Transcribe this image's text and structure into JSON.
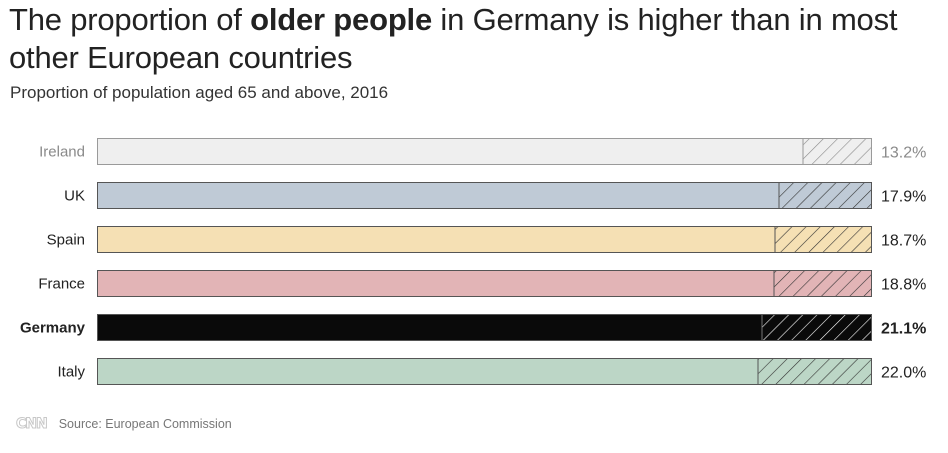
{
  "header": {
    "title_part1": "The proportion of ",
    "title_bold": "older people",
    "title_part2": " in Germany is higher than in most other European countries",
    "subtitle": "Proportion of population aged 65 and above, 2016"
  },
  "footer": {
    "logo": "CNN",
    "source": "Source: European Commission"
  },
  "chart_data": {
    "type": "bar",
    "orientation": "horizontal",
    "categories": [
      "Ireland",
      "UK",
      "Spain",
      "France",
      "Germany",
      "Italy"
    ],
    "values": [
      13.2,
      17.9,
      18.7,
      18.8,
      21.1,
      22.0
    ],
    "value_labels": [
      "13.2%",
      "17.9%",
      "18.7%",
      "18.8%",
      "21.1%",
      "22.0%"
    ],
    "unit": "%",
    "total": 100,
    "highlight": "Germany",
    "colors": [
      "#efefef",
      "#bfcad6",
      "#f5e0b4",
      "#e2b4b6",
      "#0a0a0a",
      "#bcd6c6"
    ],
    "title": "The proportion of older people in Germany is higher than in most other European countries",
    "subtitle": "Proportion of population aged 65 and above, 2016",
    "xlabel": "",
    "ylabel": "",
    "grid": false,
    "legend": "none"
  }
}
